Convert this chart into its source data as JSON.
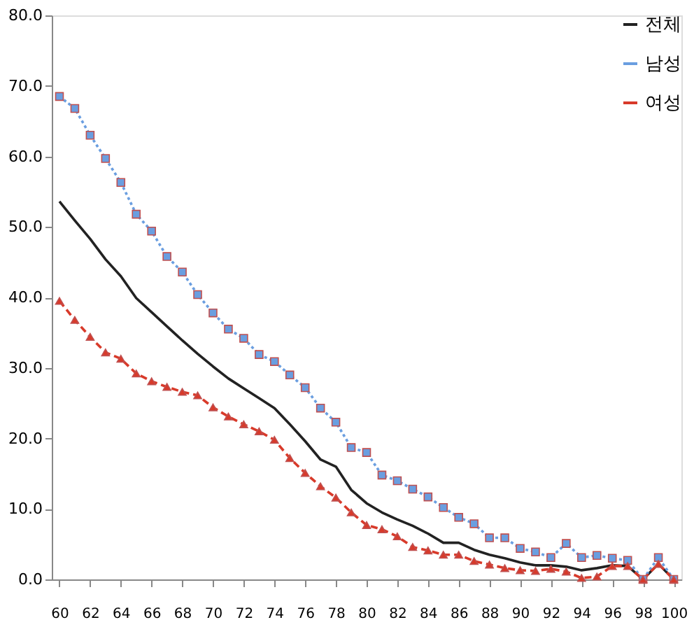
{
  "chart_data": {
    "type": "line",
    "x": [
      60,
      61,
      62,
      63,
      64,
      65,
      66,
      67,
      68,
      69,
      70,
      71,
      72,
      73,
      74,
      75,
      76,
      77,
      78,
      79,
      80,
      81,
      82,
      83,
      84,
      85,
      86,
      87,
      88,
      89,
      90,
      91,
      92,
      93,
      94,
      95,
      96,
      97,
      98,
      99,
      100
    ],
    "series": [
      {
        "name": "전체",
        "color": "#222222",
        "marker": "none",
        "line_style": "solid",
        "values": [
          53.6,
          50.9,
          48.3,
          45.4,
          43.0,
          39.9,
          37.9,
          35.9,
          33.9,
          32.0,
          30.2,
          28.5,
          27.1,
          25.7,
          24.3,
          22.0,
          19.6,
          17.0,
          16.0,
          12.7,
          10.8,
          9.5,
          8.5,
          7.6,
          6.5,
          5.2,
          5.2,
          4.2,
          3.5,
          3.0,
          2.4,
          2.0,
          2.0,
          1.8,
          1.3,
          1.6,
          2.0,
          1.9,
          0.0,
          2.2,
          0.0
        ]
      },
      {
        "name": "남성",
        "color": "#6a9ee0",
        "marker": "square",
        "line_style": "dotted",
        "values": [
          68.5,
          66.8,
          63.0,
          59.7,
          56.3,
          51.8,
          49.4,
          45.8,
          43.6,
          40.4,
          37.8,
          35.5,
          34.2,
          31.9,
          30.9,
          29.0,
          27.2,
          24.3,
          22.3,
          18.7,
          18.0,
          14.8,
          14.0,
          12.8,
          11.7,
          10.2,
          8.8,
          7.9,
          5.9,
          5.9,
          4.4,
          3.9,
          3.1,
          5.1,
          3.1,
          3.4,
          3.0,
          2.7,
          0.0,
          3.1,
          0.0
        ]
      },
      {
        "name": "여성",
        "color": "#d83a2a",
        "marker": "triangle",
        "line_style": "dashed",
        "values": [
          39.5,
          36.8,
          34.4,
          32.2,
          31.3,
          29.2,
          28.1,
          27.3,
          26.6,
          26.1,
          24.4,
          23.1,
          22.0,
          21.0,
          19.8,
          17.2,
          15.1,
          13.2,
          11.6,
          9.5,
          7.7,
          7.1,
          6.1,
          4.6,
          4.1,
          3.5,
          3.5,
          2.6,
          2.1,
          1.6,
          1.3,
          1.2,
          1.5,
          1.1,
          0.2,
          0.4,
          1.9,
          1.9,
          0.0,
          2.2,
          0.0
        ]
      }
    ],
    "xlim": [
      59.5,
      100.5
    ],
    "xticks": [
      60,
      62,
      64,
      66,
      68,
      70,
      72,
      74,
      76,
      78,
      80,
      82,
      84,
      86,
      88,
      90,
      92,
      94,
      96,
      98,
      100
    ],
    "ylim": [
      0,
      80
    ],
    "yticks": [
      {
        "value": 0,
        "label": "0.0"
      },
      {
        "value": 10,
        "label": "10.0"
      },
      {
        "value": 20,
        "label": "20.0"
      },
      {
        "value": 30,
        "label": "30.0"
      },
      {
        "value": 40,
        "label": "40.0"
      },
      {
        "value": 50,
        "label": "50.0"
      },
      {
        "value": 60,
        "label": "60.0"
      },
      {
        "value": 70,
        "label": "70.0"
      },
      {
        "value": 80,
        "label": "80.0"
      }
    ],
    "grid": false,
    "legend": "top right"
  }
}
